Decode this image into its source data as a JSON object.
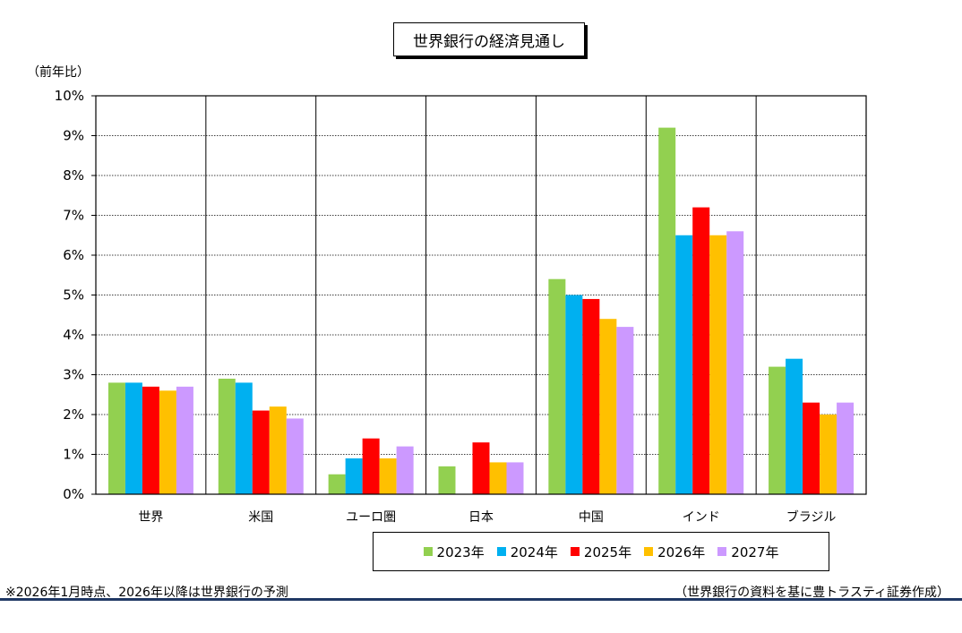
{
  "chart_data": {
    "type": "bar",
    "title": "世界銀行の経済見通し",
    "ylabel": "（前年比）",
    "ylim": [
      0,
      10
    ],
    "ytick_step": 1,
    "ytick_suffix": "%",
    "grid": true,
    "legend_position": "bottom",
    "categories": [
      "世界",
      "米国",
      "ユーロ圏",
      "日本",
      "中国",
      "インド",
      "ブラジル"
    ],
    "series": [
      {
        "name": "2023年",
        "color": "#92d050",
        "values": [
          2.8,
          2.9,
          0.5,
          0.7,
          5.4,
          9.2,
          3.2
        ]
      },
      {
        "name": "2024年",
        "color": "#00b0f0",
        "values": [
          2.8,
          2.8,
          0.9,
          0.0,
          5.0,
          6.5,
          3.4
        ]
      },
      {
        "name": "2025年",
        "color": "#ff0000",
        "values": [
          2.7,
          2.1,
          1.4,
          1.3,
          4.9,
          7.2,
          2.3
        ]
      },
      {
        "name": "2026年",
        "color": "#ffc000",
        "values": [
          2.6,
          2.2,
          0.9,
          0.8,
          4.4,
          6.5,
          2.0
        ]
      },
      {
        "name": "2027年",
        "color": "#cc99ff",
        "values": [
          2.7,
          1.9,
          1.2,
          0.8,
          4.2,
          6.6,
          2.3
        ]
      }
    ]
  },
  "notes": {
    "footnote": "※2026年1月時点、2026年以降は世界銀行の予測",
    "source": "（世界銀行の資料を基に豊トラスティ証券作成）"
  }
}
